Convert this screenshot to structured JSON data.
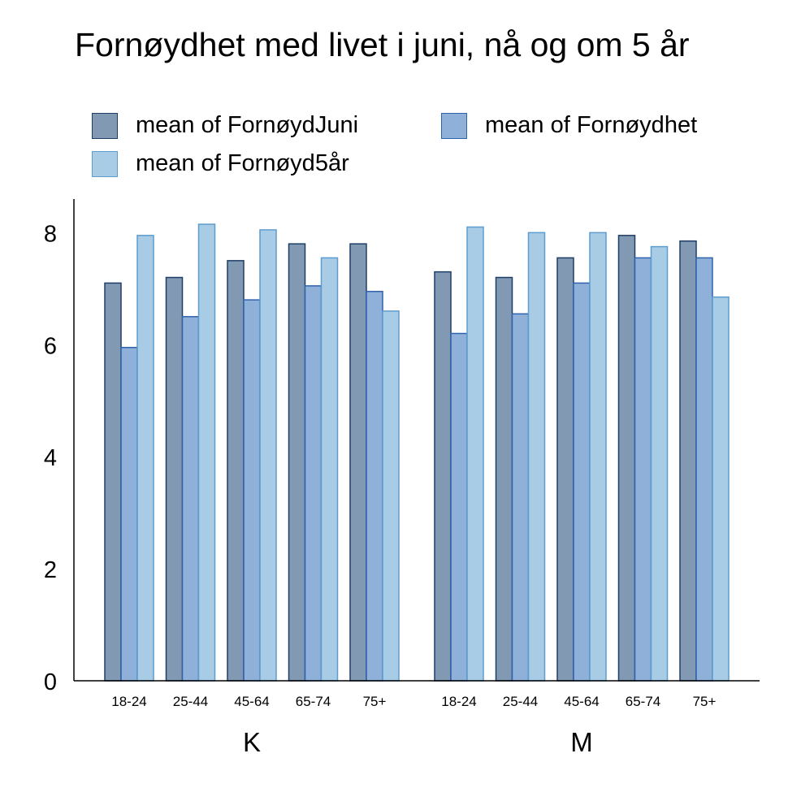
{
  "chart_data": {
    "type": "bar",
    "title": "Fornøydhet med livet i juni, nå og om 5 år",
    "groups": [
      "K",
      "M"
    ],
    "categories": [
      "18-24",
      "25-44",
      "45-64",
      "65-74",
      "75+"
    ],
    "series": [
      {
        "name": "mean of FornøydJuni",
        "fill": "#8299b4",
        "stroke": "#1f3e66",
        "values": {
          "K": [
            7.1,
            7.2,
            7.5,
            7.8,
            7.8
          ],
          "M": [
            7.3,
            7.2,
            7.55,
            7.95,
            7.85
          ]
        }
      },
      {
        "name": "mean of Fornøydhet",
        "fill": "#8fb0d9",
        "stroke": "#2f62ad",
        "values": {
          "K": [
            5.95,
            6.5,
            6.8,
            7.05,
            6.95
          ],
          "M": [
            6.2,
            6.55,
            7.1,
            7.55,
            7.55
          ]
        }
      },
      {
        "name": "mean of Fornøyd5år",
        "fill": "#a8cce6",
        "stroke": "#5e9ccd",
        "values": {
          "K": [
            7.95,
            8.15,
            8.05,
            7.55,
            6.6
          ],
          "M": [
            8.1,
            8.0,
            8.0,
            7.75,
            6.85
          ]
        }
      }
    ],
    "ylim": [
      0,
      8.6
    ],
    "yticks": [
      0,
      2,
      4,
      6,
      8
    ],
    "xlabel": "",
    "ylabel": "",
    "legend": "top",
    "grid": false
  }
}
